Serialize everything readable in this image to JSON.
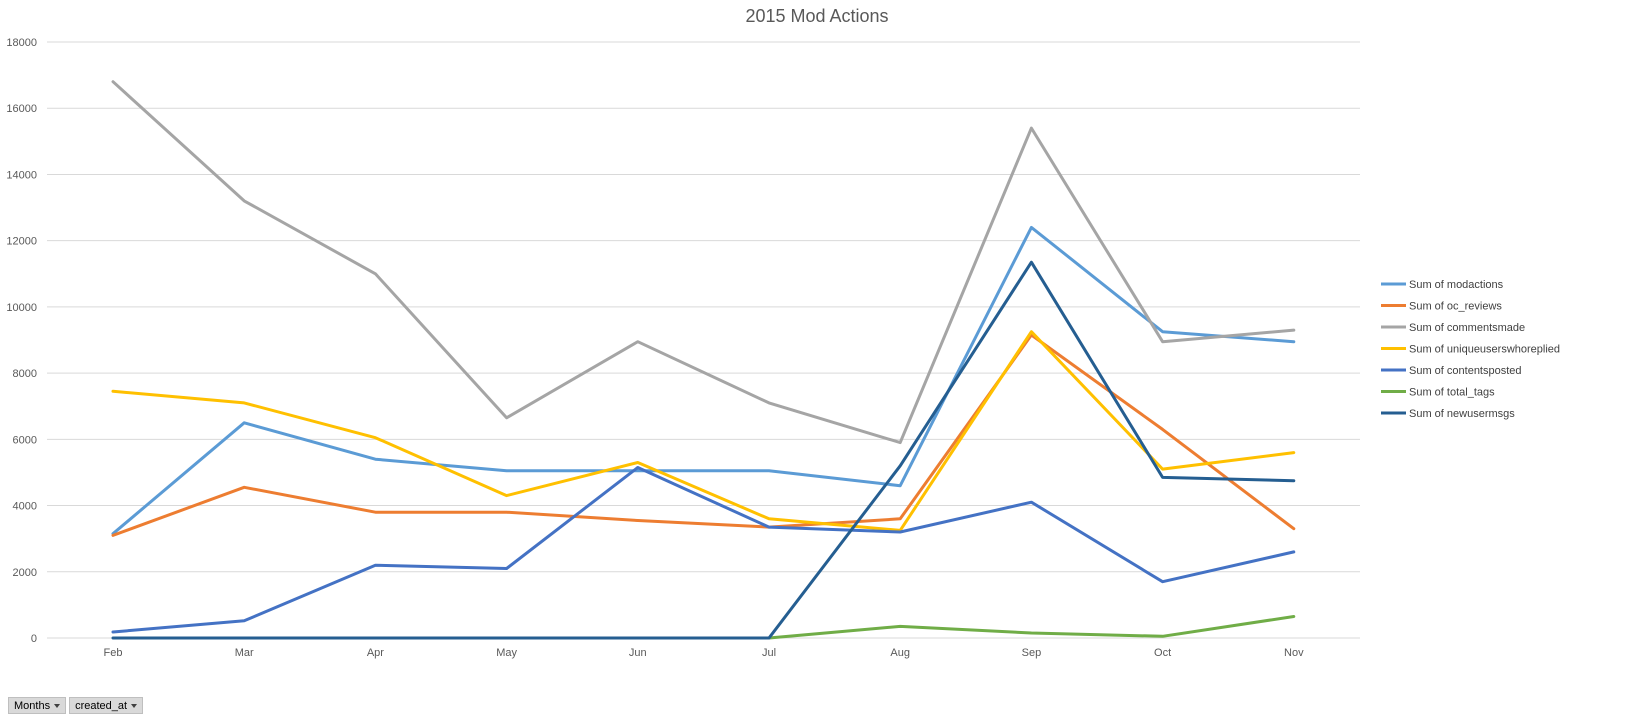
{
  "chart_data": {
    "type": "line",
    "title": "2015 Mod Actions",
    "categories": [
      "Feb",
      "Mar",
      "Apr",
      "May",
      "Jun",
      "Jul",
      "Aug",
      "Sep",
      "Oct",
      "Nov"
    ],
    "y_ticks": [
      "0",
      "2000",
      "4000",
      "6000",
      "8000",
      "10000",
      "12000",
      "14000",
      "16000",
      "18000"
    ],
    "ylim": [
      0,
      18000
    ],
    "grid": true,
    "legend_position": "right",
    "series": [
      {
        "name": "Sum of modactions",
        "color": "#5b9bd5",
        "values": [
          3150,
          6500,
          5400,
          5050,
          5050,
          5050,
          4600,
          12400,
          9250,
          8950
        ]
      },
      {
        "name": "Sum of oc_reviews",
        "color": "#ed7d31",
        "values": [
          3100,
          4550,
          3800,
          3800,
          3550,
          3350,
          3600,
          9150,
          6300,
          3300
        ]
      },
      {
        "name": "Sum of commentsmade",
        "color": "#a5a5a5",
        "values": [
          16800,
          13200,
          11000,
          6650,
          8950,
          7100,
          5900,
          15400,
          8950,
          9300
        ]
      },
      {
        "name": "Sum of uniqueuserswhoreplied",
        "color": "#ffc000",
        "values": [
          7450,
          7100,
          6050,
          4300,
          5300,
          3600,
          3250,
          9250,
          5100,
          5600
        ]
      },
      {
        "name": "Sum of contentsposted",
        "color": "#4472c4",
        "values": [
          180,
          520,
          2200,
          2100,
          5150,
          3350,
          3200,
          4100,
          1700,
          2600
        ]
      },
      {
        "name": "Sum of total_tags",
        "color": "#70ad47",
        "values": [
          null,
          null,
          null,
          null,
          null,
          0,
          350,
          150,
          50,
          650
        ]
      },
      {
        "name": "Sum of newusermsgs",
        "color": "#255e91",
        "values": [
          0,
          0,
          0,
          0,
          0,
          0,
          5200,
          11350,
          4850,
          4750
        ]
      }
    ]
  },
  "field_buttons": [
    {
      "label": "Months"
    },
    {
      "label": "created_at"
    }
  ]
}
